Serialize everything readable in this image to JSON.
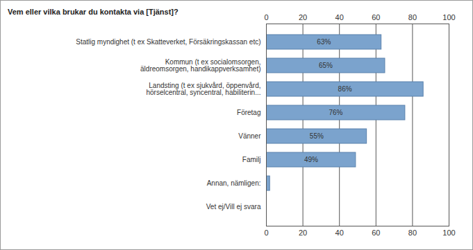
{
  "chart_data": {
    "type": "bar",
    "title": "Vem eller vilka brukar du kontakta via [Tjänst]?",
    "orientation": "horizontal",
    "categories": [
      "Statlig myndighet (t ex Skatteverket, Försäkringskassan etc)",
      "Kommun (t ex socialomsorgen,\näldreomsorgen, handikappverksamhet)",
      "Landsting (t ex sjukvård, öppenvård,\nhörselcentral, syncentral, habiliterin...",
      "Företag",
      "Vänner",
      "Familj",
      "Annan, nämligen:",
      "Vet ej/Vill ej svara"
    ],
    "values": [
      63,
      65,
      86,
      76,
      55,
      49,
      2,
      0
    ],
    "value_labels": [
      "63%",
      "65%",
      "86%",
      "76%",
      "55%",
      "49%",
      null,
      null
    ],
    "data_labels": true,
    "color": "#7ba3cd",
    "xlim": [
      0,
      100
    ],
    "xticks": [
      0,
      20,
      40,
      60,
      80,
      100
    ],
    "grid": true
  }
}
